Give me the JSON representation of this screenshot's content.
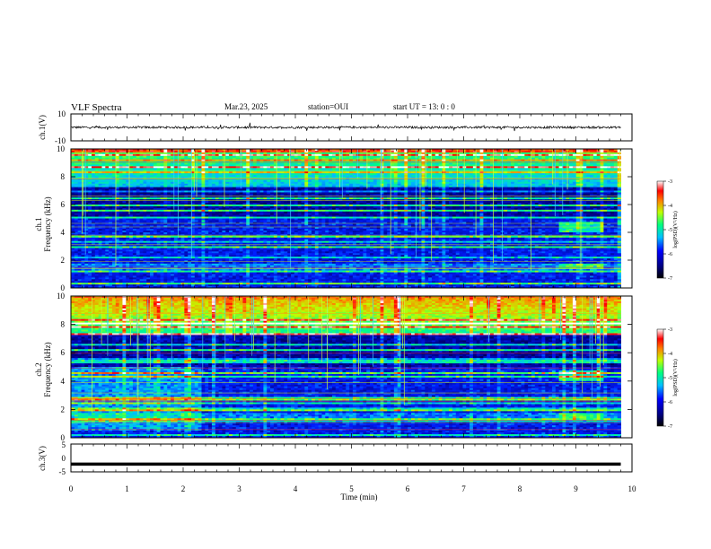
{
  "header": {
    "title": "VLF Spectra",
    "date": "Mar.23, 2025",
    "station": "station=OUI",
    "start": "start  UT =   13: 0  : 0"
  },
  "colors": {
    "waveform": "#000000",
    "frame": "#000000",
    "colormap": [
      "#000060",
      "#0000ff",
      "#00c0ff",
      "#00ff80",
      "#ffff00",
      "#ff0000",
      "#ffffff"
    ]
  },
  "chart_data": [
    {
      "type": "line",
      "panel": "ch1-waveform",
      "ylabel": "ch.1(V)",
      "ylim": [
        -10,
        10
      ],
      "ytick_labels": [
        "10",
        "-10"
      ],
      "x_range": [
        0,
        10
      ],
      "data_extent_min": 9.8,
      "description": "noisy waveform centered near 0 V with small spikes"
    },
    {
      "type": "heatmap",
      "panel": "ch1-spectrogram",
      "ylabel": "ch.1\nFrequency (kHz)",
      "ylim": [
        0,
        10
      ],
      "ytick_labels": [
        "0",
        "2",
        "4",
        "6",
        "8",
        "10"
      ],
      "x_range": [
        0,
        9.8
      ],
      "colorbar": {
        "label": "log(PSD)(V²/Hz)",
        "range": [
          -7,
          -3
        ],
        "tick_labels": [
          "-3",
          "-4",
          "-5",
          "-6",
          "-7"
        ]
      }
    },
    {
      "type": "heatmap",
      "panel": "ch2-spectrogram",
      "ylabel": "ch.2\nFrequency (kHz)",
      "ylim": [
        0,
        10
      ],
      "ytick_labels": [
        "0",
        "2",
        "4",
        "6",
        "8",
        "10"
      ],
      "x_range": [
        0,
        9.8
      ],
      "colorbar": {
        "label": "log(PSD)(V²/Hz)",
        "range": [
          -7,
          -3
        ],
        "tick_labels": [
          "-3",
          "-4",
          "-5",
          "-6",
          "-7"
        ]
      }
    },
    {
      "type": "line",
      "panel": "ch3-waveform",
      "ylabel": "ch.3(V)",
      "ylim": [
        -5,
        5
      ],
      "ytick_labels": [
        "5",
        "0",
        "-5"
      ],
      "x_range": [
        0,
        10
      ],
      "constant_value": -2.2,
      "description": "flat thick line at constant level"
    }
  ],
  "xaxis": {
    "label": "Time  (min)",
    "ticks": [
      "0",
      "1",
      "2",
      "3",
      "4",
      "5",
      "6",
      "7",
      "8",
      "9",
      "10"
    ]
  }
}
